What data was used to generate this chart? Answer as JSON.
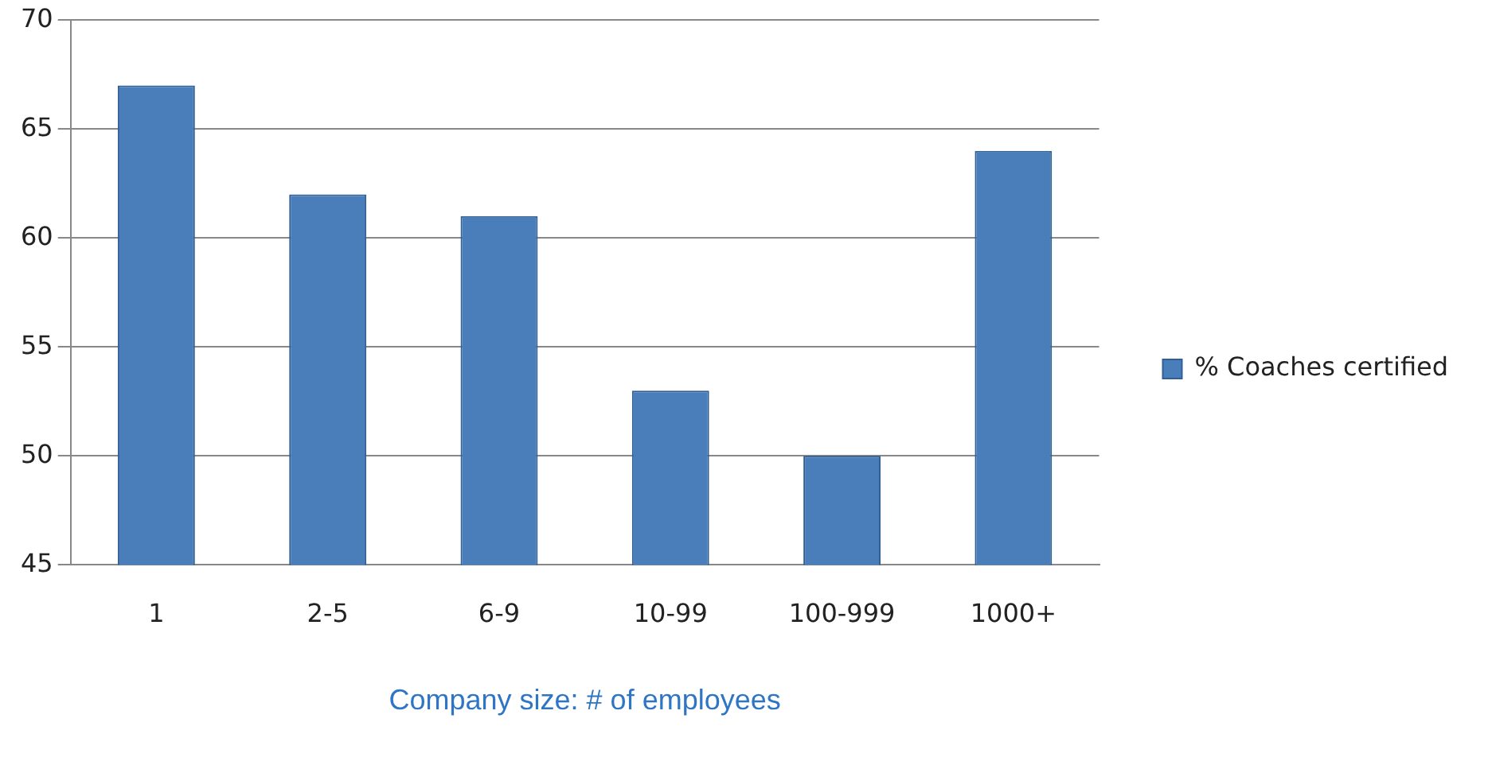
{
  "chart_data": {
    "type": "bar",
    "xlabel": "Company size: # of employees",
    "categories": [
      "1",
      "2-5",
      "6-9",
      "10-99",
      "100-999",
      "1000+"
    ],
    "series": [
      {
        "name": "% Coaches certified",
        "color": "#4a7ebb",
        "values": [
          67,
          62,
          61,
          53,
          50,
          64
        ]
      }
    ],
    "ylim": [
      45,
      70
    ],
    "yticks": [
      45,
      50,
      55,
      60,
      65,
      70
    ],
    "grid": "y",
    "legend": "right"
  }
}
